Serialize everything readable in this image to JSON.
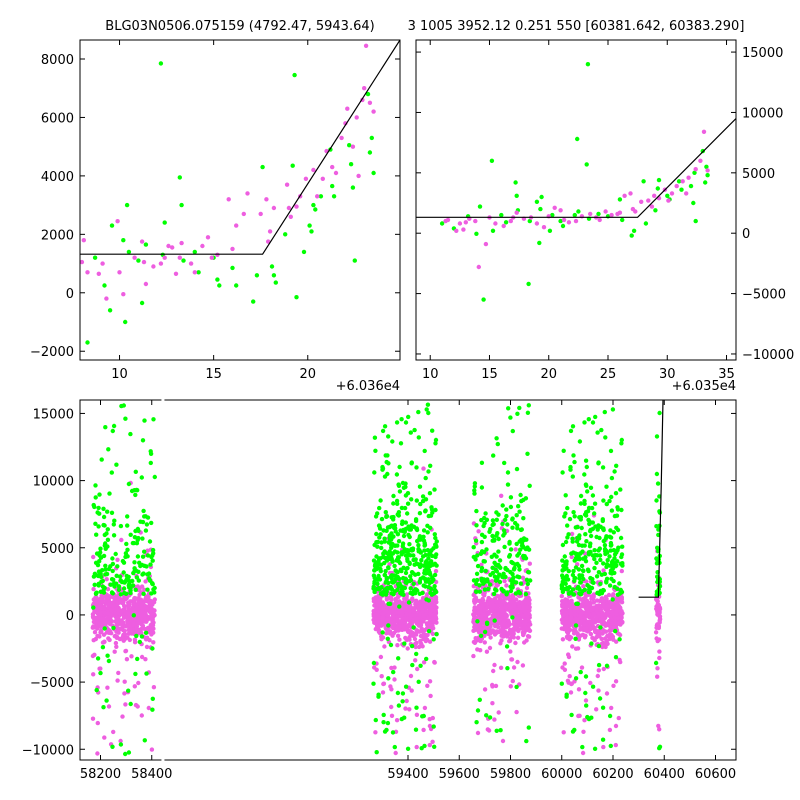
{
  "titles": {
    "left": "BLG03N0506.075159 (4792.47, 5943.64)",
    "right": "3 1005 3952.12 0.251 550 [60381.642, 60383.290]"
  },
  "colors": {
    "series_a": "#00ff00",
    "series_b": "#ee5ee0",
    "model": "#000000",
    "background": "#ffffff"
  },
  "chart_data": [
    {
      "id": "top-left",
      "type": "scatter",
      "title": "BLG03N0506.075159 (4792.47, 5943.64)",
      "xlim": [
        7.9,
        24.9
      ],
      "ylim": [
        -2300,
        8650
      ],
      "x_offset_label": "+6.036e4",
      "x_ticks": [
        10,
        15,
        20
      ],
      "y_ticks": [
        -2000,
        0,
        2000,
        4000,
        6000,
        8000
      ],
      "model_line": {
        "x": [
          7.9,
          17.6,
          24.9
        ],
        "y": [
          1320,
          1320,
          8650
        ]
      },
      "series": [
        {
          "color": "series_a",
          "points": [
            [
              8.3,
              -1700
            ],
            [
              8.7,
              1200
            ],
            [
              9.2,
              250
            ],
            [
              9.5,
              -600
            ],
            [
              9.6,
              2300
            ],
            [
              10.2,
              1800
            ],
            [
              10.3,
              -1000
            ],
            [
              10.4,
              3000
            ],
            [
              10.5,
              1400
            ],
            [
              11.0,
              1100
            ],
            [
              11.2,
              -350
            ],
            [
              11.4,
              1650
            ],
            [
              12.2,
              7850
            ],
            [
              12.3,
              1300
            ],
            [
              12.4,
              2400
            ],
            [
              13.2,
              3950
            ],
            [
              13.3,
              3000
            ],
            [
              13.4,
              1100
            ],
            [
              14.0,
              1400
            ],
            [
              14.2,
              700
            ],
            [
              15.0,
              1200
            ],
            [
              15.2,
              450
            ],
            [
              15.3,
              250
            ],
            [
              16.0,
              850
            ],
            [
              16.2,
              250
            ],
            [
              17.1,
              -300
            ],
            [
              17.3,
              600
            ],
            [
              17.6,
              4300
            ],
            [
              18.1,
              900
            ],
            [
              18.2,
              600
            ],
            [
              18.3,
              350
            ],
            [
              18.8,
              2000
            ],
            [
              19.2,
              4350
            ],
            [
              19.3,
              7450
            ],
            [
              19.4,
              -150
            ],
            [
              19.8,
              1400
            ],
            [
              20.1,
              2300
            ],
            [
              20.2,
              2100
            ],
            [
              20.3,
              3000
            ],
            [
              20.4,
              2850
            ],
            [
              20.7,
              3300
            ],
            [
              21.2,
              4900
            ],
            [
              21.3,
              3650
            ],
            [
              21.4,
              3300
            ],
            [
              22.2,
              5050
            ],
            [
              22.3,
              4400
            ],
            [
              22.4,
              3600
            ],
            [
              22.5,
              1100
            ],
            [
              23.2,
              6800
            ],
            [
              23.3,
              4800
            ],
            [
              23.4,
              5300
            ],
            [
              23.5,
              4100
            ]
          ]
        },
        {
          "color": "series_b",
          "points": [
            [
              8.0,
              1050
            ],
            [
              8.1,
              1800
            ],
            [
              8.3,
              700
            ],
            [
              8.9,
              650
            ],
            [
              9.1,
              1000
            ],
            [
              9.3,
              -200
            ],
            [
              9.9,
              2450
            ],
            [
              10.0,
              700
            ],
            [
              10.2,
              -50
            ],
            [
              11.2,
              1750
            ],
            [
              11.3,
              1050
            ],
            [
              11.4,
              300
            ],
            [
              12.2,
              1000
            ],
            [
              12.4,
              1200
            ],
            [
              12.8,
              1550
            ],
            [
              13.0,
              650
            ],
            [
              13.2,
              1200
            ],
            [
              13.8,
              1000
            ],
            [
              14.0,
              700
            ],
            [
              14.4,
              1600
            ],
            [
              14.7,
              1900
            ],
            [
              15.2,
              1300
            ],
            [
              15.8,
              3200
            ],
            [
              16.0,
              1500
            ],
            [
              16.6,
              2700
            ],
            [
              16.8,
              3400
            ],
            [
              17.5,
              2700
            ],
            [
              17.8,
              3200
            ],
            [
              18.0,
              2100
            ],
            [
              18.2,
              2900
            ],
            [
              18.9,
              3700
            ],
            [
              19.1,
              2600
            ],
            [
              19.4,
              2950
            ],
            [
              19.6,
              3300
            ],
            [
              19.9,
              3900
            ],
            [
              20.3,
              4200
            ],
            [
              20.8,
              3900
            ],
            [
              21.0,
              4850
            ],
            [
              21.5,
              4100
            ],
            [
              21.8,
              5300
            ],
            [
              22.0,
              5800
            ],
            [
              22.1,
              6300
            ],
            [
              22.4,
              5000
            ],
            [
              22.6,
              6000
            ],
            [
              22.9,
              6600
            ],
            [
              23.0,
              7000
            ],
            [
              23.1,
              8450
            ],
            [
              23.3,
              6500
            ],
            [
              23.5,
              6200
            ],
            [
              22.7,
              4000
            ],
            [
              21.3,
              4300
            ],
            [
              20.5,
              3300
            ],
            [
              19.0,
              2900
            ],
            [
              17.9,
              1750
            ],
            [
              16.2,
              2300
            ],
            [
              14.9,
              1200
            ],
            [
              13.3,
              1700
            ],
            [
              12.6,
              1600
            ],
            [
              11.8,
              900
            ],
            [
              10.8,
              1200
            ]
          ]
        }
      ]
    },
    {
      "id": "top-right",
      "type": "scatter",
      "title": "3 1005 3952.12 0.251 550 [60381.642, 60383.290]",
      "xlim": [
        8.8,
        35.8
      ],
      "ylim": [
        -10500,
        16000
      ],
      "x_offset_label": "+6.035e4",
      "x_ticks": [
        10,
        15,
        20,
        25,
        30,
        35
      ],
      "y_ticks": [
        -10000,
        -5000,
        0,
        5000,
        10000,
        15000
      ],
      "model_line": {
        "x": [
          8.8,
          27.5,
          35.8
        ],
        "y": [
          1320,
          1320,
          9500
        ]
      },
      "series": [
        {
          "color": "series_a",
          "points": [
            [
              11.0,
              800
            ],
            [
              12.0,
              400
            ],
            [
              13.2,
              1400
            ],
            [
              13.9,
              -50
            ],
            [
              14.2,
              2200
            ],
            [
              14.5,
              -5500
            ],
            [
              15.2,
              6000
            ],
            [
              15.3,
              200
            ],
            [
              16.0,
              1500
            ],
            [
              16.4,
              900
            ],
            [
              17.2,
              4200
            ],
            [
              17.3,
              3100
            ],
            [
              17.4,
              1900
            ],
            [
              18.3,
              -4200
            ],
            [
              18.4,
              1000
            ],
            [
              19.0,
              2600
            ],
            [
              19.2,
              -800
            ],
            [
              19.3,
              2000
            ],
            [
              19.4,
              3000
            ],
            [
              20.1,
              200
            ],
            [
              20.3,
              1500
            ],
            [
              21.0,
              1000
            ],
            [
              21.2,
              600
            ],
            [
              22.2,
              1500
            ],
            [
              22.4,
              7800
            ],
            [
              22.5,
              1800
            ],
            [
              23.2,
              5700
            ],
            [
              23.3,
              14000
            ],
            [
              23.4,
              1200
            ],
            [
              24.2,
              1600
            ],
            [
              25.0,
              1400
            ],
            [
              26.0,
              2800
            ],
            [
              26.2,
              1100
            ],
            [
              27.0,
              -200
            ],
            [
              27.2,
              200
            ],
            [
              28.0,
              4300
            ],
            [
              28.2,
              800
            ],
            [
              29.0,
              1900
            ],
            [
              29.2,
              3700
            ],
            [
              29.3,
              4400
            ],
            [
              30.0,
              3100
            ],
            [
              30.2,
              2800
            ],
            [
              31.0,
              4300
            ],
            [
              31.2,
              3600
            ],
            [
              32.0,
              3900
            ],
            [
              32.2,
              2500
            ],
            [
              32.3,
              5000
            ],
            [
              32.4,
              1000
            ],
            [
              33.0,
              6800
            ],
            [
              33.2,
              4200
            ],
            [
              33.3,
              5500
            ],
            [
              33.4,
              4800
            ]
          ]
        },
        {
          "color": "series_b",
          "points": [
            [
              11.5,
              1100
            ],
            [
              12.2,
              200
            ],
            [
              12.5,
              800
            ],
            [
              13.0,
              900
            ],
            [
              13.3,
              1200
            ],
            [
              14.1,
              -2800
            ],
            [
              14.7,
              -900
            ],
            [
              15.0,
              1300
            ],
            [
              16.2,
              600
            ],
            [
              16.8,
              1000
            ],
            [
              17.3,
              1700
            ],
            [
              17.9,
              1200
            ],
            [
              18.5,
              1300
            ],
            [
              19.6,
              500
            ],
            [
              20.0,
              1400
            ],
            [
              20.5,
              2100
            ],
            [
              21.0,
              1900
            ],
            [
              21.7,
              900
            ],
            [
              22.3,
              1000
            ],
            [
              22.8,
              1400
            ],
            [
              23.5,
              1600
            ],
            [
              24.3,
              1100
            ],
            [
              24.8,
              1800
            ],
            [
              25.3,
              1500
            ],
            [
              26.0,
              1700
            ],
            [
              26.4,
              3100
            ],
            [
              26.9,
              3300
            ],
            [
              27.3,
              1800
            ],
            [
              27.8,
              2600
            ],
            [
              28.4,
              2700
            ],
            [
              28.9,
              3100
            ],
            [
              29.3,
              2900
            ],
            [
              29.8,
              3600
            ],
            [
              30.4,
              3300
            ],
            [
              30.8,
              3900
            ],
            [
              31.3,
              4300
            ],
            [
              31.8,
              4600
            ],
            [
              32.4,
              5300
            ],
            [
              32.8,
              6000
            ],
            [
              33.1,
              8400
            ],
            [
              33.4,
              5200
            ],
            [
              31.6,
              3300
            ],
            [
              30.1,
              2700
            ],
            [
              28.7,
              2200
            ],
            [
              27.1,
              2000
            ],
            [
              25.8,
              1600
            ],
            [
              24.0,
              1300
            ],
            [
              21.3,
              1100
            ],
            [
              19.0,
              800
            ],
            [
              17.0,
              1300
            ],
            [
              15.5,
              800
            ],
            [
              13.8,
              1000
            ],
            [
              12.8,
              300
            ],
            [
              11.3,
              1000
            ]
          ]
        }
      ]
    },
    {
      "id": "bottom",
      "type": "scatter",
      "xlim": [
        58120,
        60680
      ],
      "ylim": [
        -10800,
        16000
      ],
      "x_ticks": [
        58200,
        58400,
        59400,
        59600,
        59800,
        60000,
        60200,
        60400,
        60600
      ],
      "y_ticks": [
        -10000,
        -5000,
        0,
        5000,
        10000,
        15000
      ],
      "axis_break": [
        58430,
        59260
      ],
      "model_line": {
        "x": [
          60300,
          60377,
          60388,
          60395
        ],
        "y": [
          1320,
          1320,
          9500,
          16000
        ]
      },
      "seasons": [
        {
          "x_range": [
            58170,
            58412
          ],
          "n_b": 620,
          "n_a": 230
        },
        {
          "x_range": [
            59265,
            59513
          ],
          "n_b": 720,
          "n_a": 480
        },
        {
          "x_range": [
            59655,
            59877
          ],
          "n_b": 650,
          "n_a": 230
        },
        {
          "x_range": [
            60000,
            60238
          ],
          "n_b": 640,
          "n_a": 330
        },
        {
          "x_range": [
            60368,
            60384
          ],
          "n_b": 60,
          "n_a": 40
        }
      ]
    }
  ]
}
